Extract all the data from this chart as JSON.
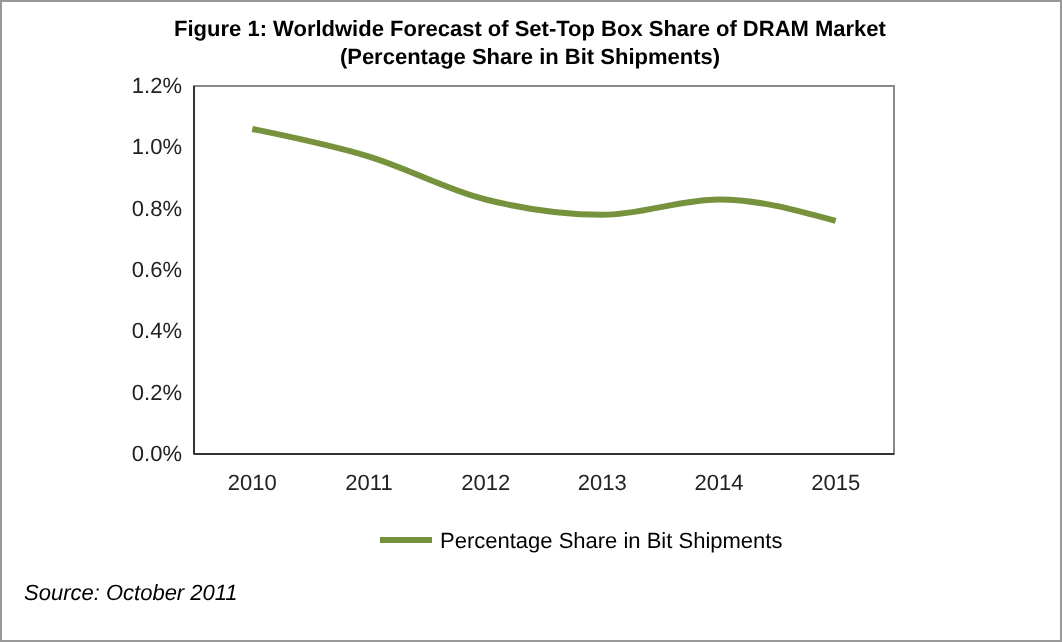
{
  "chart_data": {
    "type": "line",
    "title": "Figure 1: Worldwide Forecast of Set-Top Box Share of DRAM Market",
    "subtitle": "(Percentage Share in Bit Shipments)",
    "categories": [
      "2010",
      "2011",
      "2012",
      "2013",
      "2014",
      "2015"
    ],
    "series": [
      {
        "name": "Percentage Share in Bit Shipments",
        "color": "#76923c",
        "values": [
          1.06,
          0.97,
          0.83,
          0.78,
          0.83,
          0.76
        ]
      }
    ],
    "ylim": [
      0,
      1.2
    ],
    "yticks": [
      {
        "value": 0,
        "label": "0.0%"
      },
      {
        "value": 0.2,
        "label": "0.2%"
      },
      {
        "value": 0.4,
        "label": "0.4%"
      },
      {
        "value": 0.6,
        "label": "0.6%"
      },
      {
        "value": 0.8,
        "label": "0.8%"
      },
      {
        "value": 1.0,
        "label": "1.0%"
      },
      {
        "value": 1.2,
        "label": "1.2%"
      }
    ],
    "grid": false,
    "legend": "bottom",
    "marker": "none",
    "line_style": "solid",
    "annotations": [
      "Source: October 2011"
    ]
  }
}
